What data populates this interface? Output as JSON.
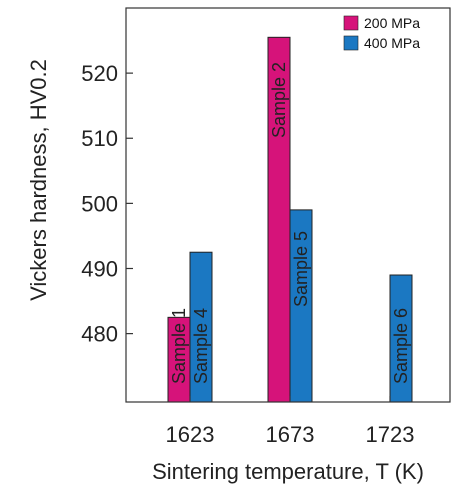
{
  "chart_data": {
    "type": "bar",
    "categories": [
      "1623",
      "1673",
      "1723"
    ],
    "xlabel": "Sintering temperature, T (K)",
    "ylabel": "Vickers hardness, HV0.2",
    "ylim": [
      469.5,
      530
    ],
    "yticks": [
      "480",
      "490",
      "500",
      "510",
      "520"
    ],
    "grid": false,
    "legend_position": "top-right",
    "series": [
      {
        "name": "200 MPa",
        "color": "#d6137a",
        "values": [
          482.5,
          525.5,
          null
        ],
        "labels": [
          "Sample 1",
          "Sample 2",
          ""
        ]
      },
      {
        "name": "400 MPa",
        "color": "#1b78c2",
        "values": [
          492.5,
          499,
          489
        ],
        "labels": [
          "Sample 4",
          "Sample 5",
          "Sample 6"
        ]
      }
    ]
  }
}
